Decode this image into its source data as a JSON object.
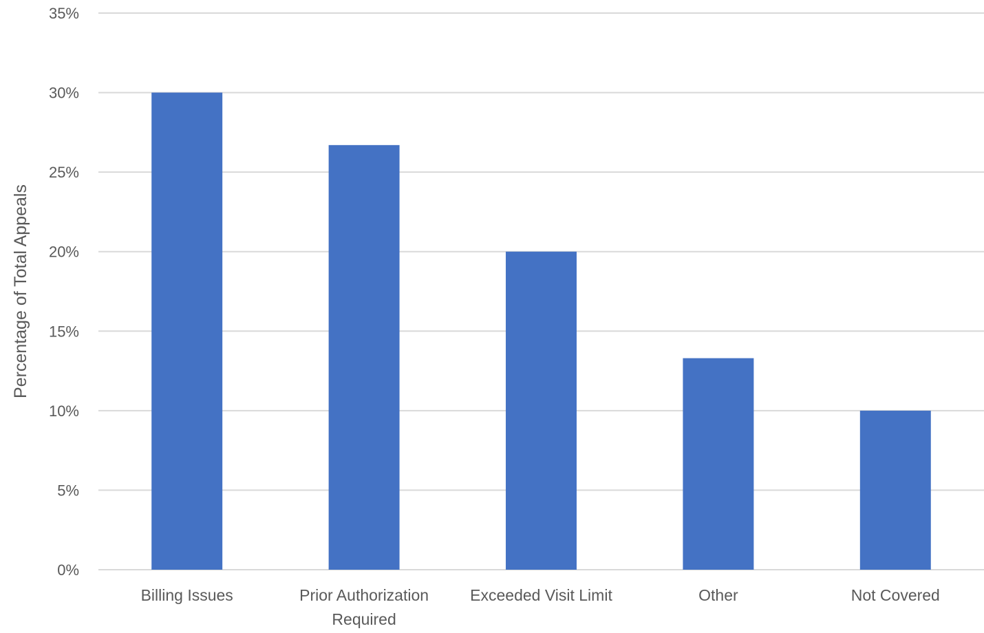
{
  "chart_data": {
    "type": "bar",
    "title": "",
    "xlabel": "",
    "ylabel": "Percentage of Total Appeals",
    "categories": [
      [
        "Billing Issues"
      ],
      [
        "Prior Authorization",
        "Required"
      ],
      [
        "Exceeded Visit Limit"
      ],
      [
        "Other"
      ],
      [
        "Not Covered"
      ]
    ],
    "values": [
      30,
      26.7,
      20,
      13.3,
      10
    ],
    "value_unit": "%",
    "ylim": [
      0,
      35
    ],
    "yticks": [
      0,
      5,
      10,
      15,
      20,
      25,
      30,
      35
    ],
    "ytick_labels": [
      "0%",
      "5%",
      "10%",
      "15%",
      "20%",
      "25%",
      "30%",
      "35%"
    ],
    "grid": true,
    "legend": "none",
    "colors": {
      "bar": "#4472C4",
      "grid": "#D9D9D9",
      "text": "#595959"
    }
  }
}
